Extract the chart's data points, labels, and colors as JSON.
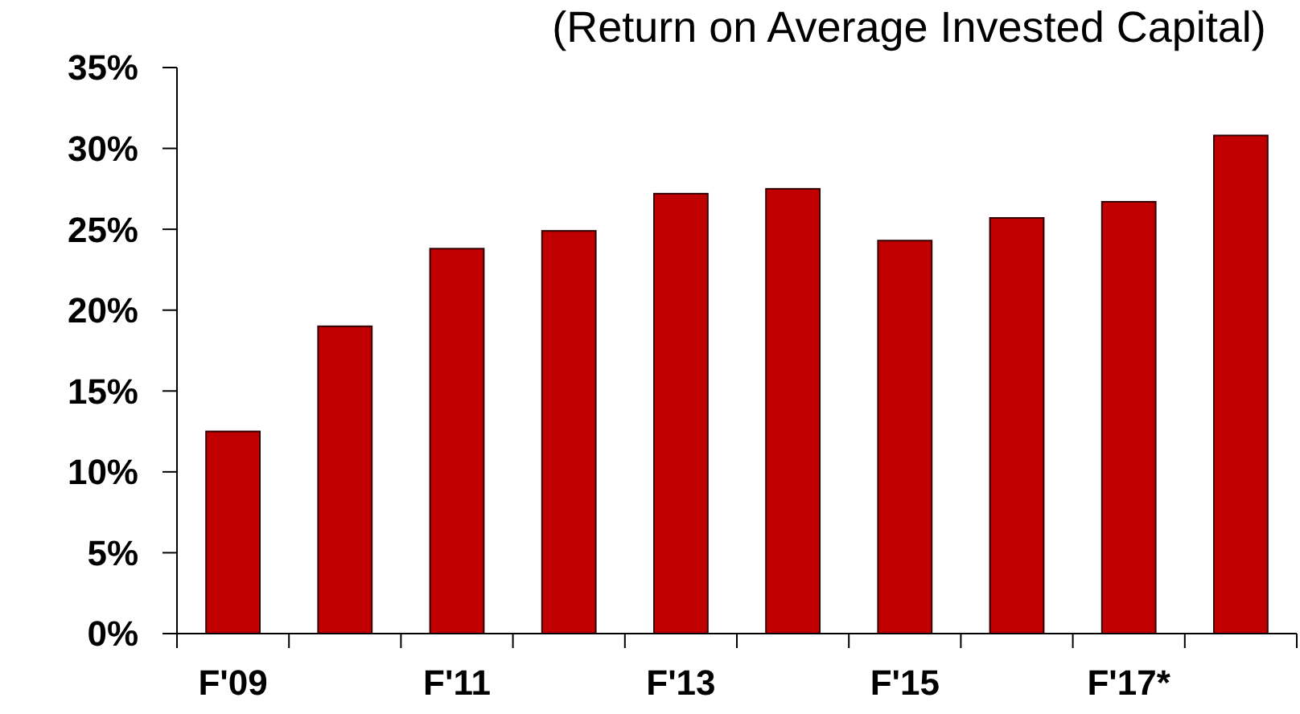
{
  "chart_data": {
    "type": "bar",
    "title": "(Return on Average Invested Capital)",
    "categories": [
      "F'09",
      null,
      "F'11",
      null,
      "F'13",
      null,
      "F'15",
      null,
      "F'17*",
      null
    ],
    "values": [
      12.5,
      19.0,
      23.8,
      24.9,
      27.2,
      27.5,
      24.3,
      25.7,
      26.7,
      30.8
    ],
    "color": "#c00000",
    "ylim": [
      0,
      35
    ],
    "yticks": [
      {
        "value": 0,
        "label": "0%"
      },
      {
        "value": 5,
        "label": "5%"
      },
      {
        "value": 10,
        "label": "10%"
      },
      {
        "value": 15,
        "label": "15%"
      },
      {
        "value": 20,
        "label": "20%"
      },
      {
        "value": 25,
        "label": "25%"
      },
      {
        "value": 30,
        "label": "30%"
      },
      {
        "value": 35,
        "label": "35%"
      }
    ],
    "grid": false
  }
}
